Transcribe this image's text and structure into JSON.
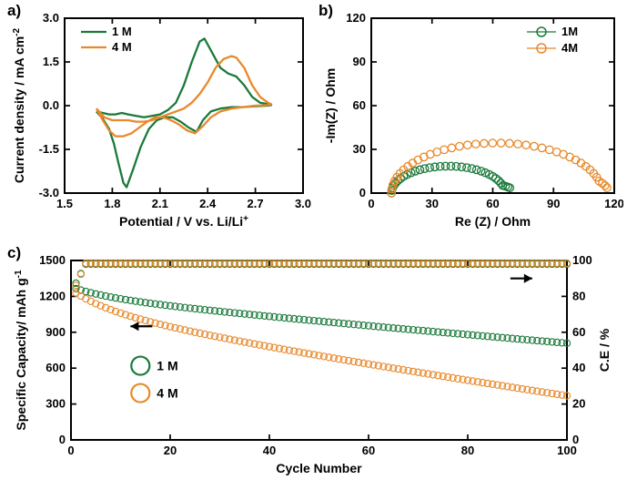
{
  "panelA": {
    "label": "a)",
    "type": "line",
    "xlabel": "Potential / V vs. Li/Li",
    "xlabel_sup": "+",
    "ylabel": "Current density / mA cm",
    "ylabel_sup": "-2",
    "xlim": [
      1.5,
      3.0
    ],
    "ylim": [
      -3.0,
      3.0
    ],
    "xticks": [
      1.5,
      1.8,
      2.1,
      2.4,
      2.7,
      3.0
    ],
    "yticks": [
      -3.0,
      -1.5,
      0.0,
      1.5,
      3.0
    ],
    "series": [
      {
        "name": "1 M",
        "color": "#1a7a3a",
        "data": [
          [
            1.7,
            -0.2
          ],
          [
            1.74,
            -0.25
          ],
          [
            1.78,
            -0.3
          ],
          [
            1.82,
            -0.3
          ],
          [
            1.86,
            -0.25
          ],
          [
            1.9,
            -0.3
          ],
          [
            1.95,
            -0.35
          ],
          [
            2.0,
            -0.4
          ],
          [
            2.05,
            -0.35
          ],
          [
            2.1,
            -0.3
          ],
          [
            2.15,
            -0.15
          ],
          [
            2.2,
            0.1
          ],
          [
            2.25,
            0.7
          ],
          [
            2.3,
            1.5
          ],
          [
            2.35,
            2.2
          ],
          [
            2.38,
            2.3
          ],
          [
            2.42,
            1.9
          ],
          [
            2.48,
            1.3
          ],
          [
            2.53,
            1.1
          ],
          [
            2.58,
            1.0
          ],
          [
            2.63,
            0.7
          ],
          [
            2.68,
            0.3
          ],
          [
            2.73,
            0.1
          ],
          [
            2.78,
            0.05
          ],
          [
            2.8,
            0.02
          ],
          [
            2.78,
            0.0
          ],
          [
            2.7,
            -0.02
          ],
          [
            2.62,
            -0.05
          ],
          [
            2.55,
            -0.05
          ],
          [
            2.48,
            -0.1
          ],
          [
            2.42,
            -0.2
          ],
          [
            2.37,
            -0.5
          ],
          [
            2.33,
            -0.9
          ],
          [
            2.28,
            -0.75
          ],
          [
            2.23,
            -0.55
          ],
          [
            2.18,
            -0.4
          ],
          [
            2.13,
            -0.4
          ],
          [
            2.08,
            -0.5
          ],
          [
            2.03,
            -0.8
          ],
          [
            1.98,
            -1.4
          ],
          [
            1.93,
            -2.2
          ],
          [
            1.89,
            -2.8
          ],
          [
            1.87,
            -2.65
          ],
          [
            1.84,
            -2.0
          ],
          [
            1.81,
            -1.3
          ],
          [
            1.78,
            -0.8
          ],
          [
            1.74,
            -0.45
          ],
          [
            1.7,
            -0.2
          ]
        ]
      },
      {
        "name": "4 M",
        "color": "#e8892b",
        "data": [
          [
            1.7,
            -0.1
          ],
          [
            1.75,
            -0.4
          ],
          [
            1.8,
            -0.5
          ],
          [
            1.85,
            -0.5
          ],
          [
            1.9,
            -0.5
          ],
          [
            1.95,
            -0.55
          ],
          [
            2.0,
            -0.55
          ],
          [
            2.05,
            -0.5
          ],
          [
            2.1,
            -0.4
          ],
          [
            2.15,
            -0.3
          ],
          [
            2.2,
            -0.2
          ],
          [
            2.25,
            -0.1
          ],
          [
            2.3,
            0.1
          ],
          [
            2.35,
            0.4
          ],
          [
            2.4,
            0.8
          ],
          [
            2.45,
            1.3
          ],
          [
            2.5,
            1.6
          ],
          [
            2.55,
            1.7
          ],
          [
            2.58,
            1.65
          ],
          [
            2.63,
            1.3
          ],
          [
            2.68,
            0.7
          ],
          [
            2.73,
            0.3
          ],
          [
            2.78,
            0.1
          ],
          [
            2.8,
            0.05
          ],
          [
            2.78,
            0.02
          ],
          [
            2.7,
            0.0
          ],
          [
            2.62,
            -0.05
          ],
          [
            2.55,
            -0.1
          ],
          [
            2.48,
            -0.2
          ],
          [
            2.42,
            -0.4
          ],
          [
            2.37,
            -0.7
          ],
          [
            2.32,
            -0.95
          ],
          [
            2.27,
            -0.85
          ],
          [
            2.22,
            -0.65
          ],
          [
            2.17,
            -0.5
          ],
          [
            2.12,
            -0.4
          ],
          [
            2.07,
            -0.4
          ],
          [
            2.02,
            -0.55
          ],
          [
            1.97,
            -0.75
          ],
          [
            1.92,
            -0.95
          ],
          [
            1.87,
            -1.05
          ],
          [
            1.82,
            -1.05
          ],
          [
            1.78,
            -0.85
          ],
          [
            1.74,
            -0.5
          ],
          [
            1.7,
            -0.1
          ]
        ]
      }
    ],
    "legend": [
      "1 M",
      "4 M"
    ],
    "line_width": 2.3
  },
  "panelB": {
    "label": "b)",
    "type": "scatter",
    "xlabel": "Re (Z) / Ohm",
    "ylabel": "-Im(Z) / Ohm",
    "xlim": [
      0,
      120
    ],
    "ylim": [
      0,
      120
    ],
    "xticks": [
      0,
      30,
      60,
      90,
      120
    ],
    "yticks": [
      0,
      30,
      60,
      90,
      120
    ],
    "series": [
      {
        "name": "1M",
        "color": "#1a7a3a",
        "center_x": 38,
        "radius": 28,
        "n_points": 34,
        "jitter_end": true
      },
      {
        "name": "4M",
        "color": "#e8892b",
        "center_x": 62,
        "radius": 52,
        "n_points": 40,
        "jitter_end": true
      }
    ],
    "marker_size": 4.2,
    "marker_stroke": 1.3,
    "legend": [
      "1M",
      "4M"
    ]
  },
  "panelC": {
    "label": "c)",
    "type": "scatter-dual",
    "xlabel": "Cycle Number",
    "ylabel_left": "Specific Capacity/ mAh g",
    "ylabel_left_sup": "-1",
    "ylabel_right": "C.E / %",
    "xlim": [
      0,
      100
    ],
    "ylim_left": [
      0,
      1500
    ],
    "ylim_right": [
      0,
      100
    ],
    "xticks": [
      0,
      20,
      40,
      60,
      80,
      100
    ],
    "yticks_left": [
      0,
      300,
      600,
      900,
      1200,
      1500
    ],
    "yticks_right": [
      0,
      20,
      40,
      60,
      80,
      100
    ],
    "capacity_series": [
      {
        "name": "1 M",
        "color": "#1a7a3a",
        "start": 1280,
        "end": 870,
        "curve": 0.35
      },
      {
        "name": "4 M",
        "color": "#e8892b",
        "start": 1260,
        "end": 485,
        "curve": 0.45
      }
    ],
    "ce_series": [
      {
        "name": "1 M CE",
        "color": "#1a7a3a",
        "start": 82,
        "settle": 98
      },
      {
        "name": "4 M CE",
        "color": "#e8892b",
        "start": 80,
        "settle": 98.5
      }
    ],
    "marker_size": 3.6,
    "marker_stroke": 1.1,
    "legend": [
      "1 M",
      "4 M"
    ]
  },
  "colors": {
    "axis": "#000000",
    "bg": "#ffffff"
  }
}
